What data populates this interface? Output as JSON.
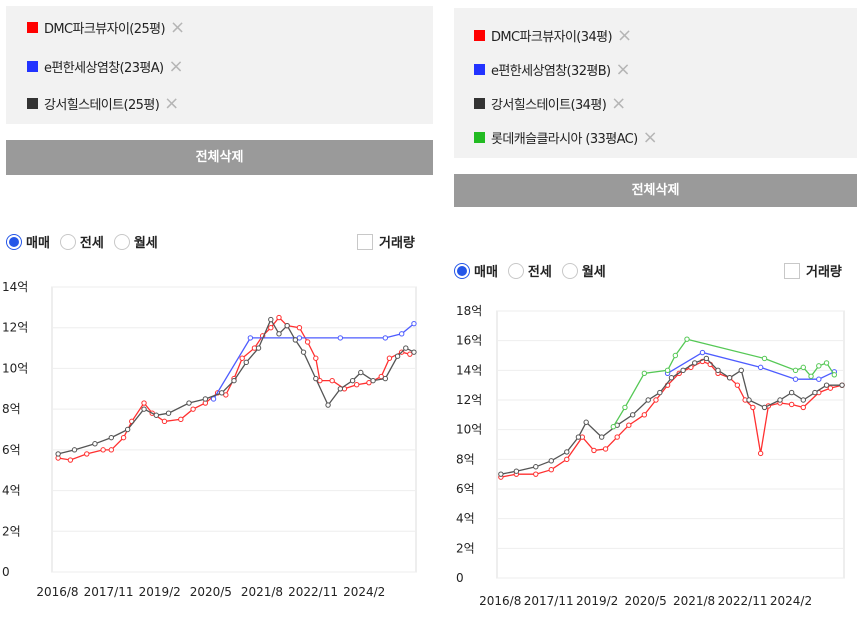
{
  "left": {
    "tags": [
      {
        "label": "DMC파크뷰자이(25평)",
        "color": "#ff0000"
      },
      {
        "label": "e편한세상염창(23평A)",
        "color": "#2233ff"
      },
      {
        "label": "강서힐스테이트(25평)",
        "color": "#333333"
      }
    ],
    "clear_label": "전체삭제",
    "radios": [
      "매매",
      "전세",
      "월세"
    ],
    "selected_radio": "매매",
    "volume_label": "거래량"
  },
  "right": {
    "tags": [
      {
        "label": "DMC파크뷰자이(34평)",
        "color": "#ff0000"
      },
      {
        "label": "e편한세상염창(32평B)",
        "color": "#2233ff"
      },
      {
        "label": "강서힐스테이트(34평)",
        "color": "#333333"
      },
      {
        "label": "롯데캐슬클라시아 (33평AC)",
        "color": "#22bb22"
      }
    ],
    "clear_label": "전체삭제",
    "radios": [
      "매매",
      "전세",
      "월세"
    ],
    "selected_radio": "매매",
    "volume_label": "거래량"
  },
  "remove_icon": "close-x",
  "chart_data": [
    {
      "type": "line",
      "x_ticks": [
        "2016/8",
        "2017/11",
        "2019/2",
        "2020/5",
        "2021/8",
        "2022/11",
        "2024/2"
      ],
      "y_ticks": [
        "0",
        "2억",
        "4억",
        "6억",
        "8억",
        "10억",
        "12억",
        "14억"
      ],
      "ylim": [
        0,
        14
      ],
      "unit": "억",
      "series": [
        {
          "name": "DMC파크뷰자이(25평)",
          "color": "#ff3030",
          "points": [
            [
              2016.6,
              5.6
            ],
            [
              2016.9,
              5.5
            ],
            [
              2017.3,
              5.8
            ],
            [
              2017.7,
              6.0
            ],
            [
              2017.9,
              6.0
            ],
            [
              2018.2,
              6.6
            ],
            [
              2018.4,
              7.4
            ],
            [
              2018.7,
              8.3
            ],
            [
              2018.9,
              7.8
            ],
            [
              2019.2,
              7.4
            ],
            [
              2019.6,
              7.5
            ],
            [
              2019.9,
              8.0
            ],
            [
              2020.2,
              8.3
            ],
            [
              2020.5,
              8.8
            ],
            [
              2020.7,
              8.7
            ],
            [
              2020.9,
              9.5
            ],
            [
              2021.1,
              10.5
            ],
            [
              2021.4,
              11.0
            ],
            [
              2021.6,
              11.6
            ],
            [
              2021.8,
              12.0
            ],
            [
              2022.0,
              12.5
            ],
            [
              2022.2,
              12.1
            ],
            [
              2022.5,
              12.0
            ],
            [
              2022.7,
              11.3
            ],
            [
              2022.9,
              10.5
            ],
            [
              2023.0,
              9.4
            ],
            [
              2023.3,
              9.4
            ],
            [
              2023.6,
              9.0
            ],
            [
              2023.9,
              9.2
            ],
            [
              2024.2,
              9.3
            ],
            [
              2024.5,
              9.6
            ],
            [
              2024.7,
              10.5
            ],
            [
              2025.0,
              10.8
            ],
            [
              2025.2,
              10.7
            ]
          ]
        },
        {
          "name": "e편한세상염창(23평A)",
          "color": "#4d5cff",
          "points": [
            [
              2020.4,
              8.5
            ],
            [
              2021.3,
              11.5
            ],
            [
              2022.5,
              11.5
            ],
            [
              2023.5,
              11.5
            ],
            [
              2024.6,
              11.5
            ],
            [
              2025.0,
              11.7
            ],
            [
              2025.3,
              12.2
            ]
          ]
        },
        {
          "name": "강서힐스테이트(25평)",
          "color": "#555555",
          "points": [
            [
              2016.6,
              5.8
            ],
            [
              2017.0,
              6.0
            ],
            [
              2017.5,
              6.3
            ],
            [
              2017.9,
              6.6
            ],
            [
              2018.3,
              7.0
            ],
            [
              2018.7,
              8.0
            ],
            [
              2019.0,
              7.7
            ],
            [
              2019.3,
              7.8
            ],
            [
              2019.8,
              8.3
            ],
            [
              2020.2,
              8.5
            ],
            [
              2020.6,
              8.8
            ],
            [
              2020.9,
              9.4
            ],
            [
              2021.2,
              10.3
            ],
            [
              2021.5,
              11.0
            ],
            [
              2021.8,
              12.4
            ],
            [
              2022.0,
              11.7
            ],
            [
              2022.2,
              12.1
            ],
            [
              2022.4,
              11.4
            ],
            [
              2022.6,
              10.8
            ],
            [
              2022.9,
              9.5
            ],
            [
              2023.2,
              8.2
            ],
            [
              2023.5,
              9.0
            ],
            [
              2023.8,
              9.4
            ],
            [
              2024.0,
              9.8
            ],
            [
              2024.3,
              9.4
            ],
            [
              2024.6,
              9.5
            ],
            [
              2024.9,
              10.6
            ],
            [
              2025.1,
              11.0
            ],
            [
              2025.3,
              10.8
            ]
          ]
        }
      ]
    },
    {
      "type": "line",
      "x_ticks": [
        "2016/8",
        "2017/11",
        "2019/2",
        "2020/5",
        "2021/8",
        "2022/11",
        "2024/2"
      ],
      "y_ticks": [
        "0",
        "2억",
        "4억",
        "6억",
        "8억",
        "10억",
        "12억",
        "14억",
        "16억",
        "18억"
      ],
      "ylim": [
        0,
        18
      ],
      "unit": "억",
      "series": [
        {
          "name": "DMC파크뷰자이(34평)",
          "color": "#ff3030",
          "points": [
            [
              2016.6,
              6.8
            ],
            [
              2017.0,
              7.0
            ],
            [
              2017.5,
              7.0
            ],
            [
              2017.9,
              7.3
            ],
            [
              2018.3,
              8.0
            ],
            [
              2018.7,
              9.5
            ],
            [
              2019.0,
              8.6
            ],
            [
              2019.3,
              8.7
            ],
            [
              2019.6,
              9.5
            ],
            [
              2019.9,
              10.3
            ],
            [
              2020.3,
              11.0
            ],
            [
              2020.6,
              12.0
            ],
            [
              2020.9,
              13.0
            ],
            [
              2021.2,
              13.8
            ],
            [
              2021.5,
              14.2
            ],
            [
              2021.8,
              14.6
            ],
            [
              2022.0,
              14.4
            ],
            [
              2022.2,
              13.8
            ],
            [
              2022.5,
              13.5
            ],
            [
              2022.7,
              13.0
            ],
            [
              2022.9,
              12.0
            ],
            [
              2023.1,
              11.5
            ],
            [
              2023.3,
              8.4
            ],
            [
              2023.5,
              11.6
            ],
            [
              2023.8,
              11.8
            ],
            [
              2024.1,
              11.7
            ],
            [
              2024.4,
              11.5
            ],
            [
              2024.8,
              12.5
            ],
            [
              2025.1,
              12.8
            ],
            [
              2025.4,
              13.0
            ]
          ]
        },
        {
          "name": "e편한세상염창(32평B)",
          "color": "#4d5cff",
          "points": [
            [
              2020.9,
              13.8
            ],
            [
              2021.8,
              15.2
            ],
            [
              2023.3,
              14.2
            ],
            [
              2024.2,
              13.4
            ],
            [
              2024.8,
              13.4
            ],
            [
              2025.2,
              13.9
            ]
          ]
        },
        {
          "name": "강서힐스테이트(34평)",
          "color": "#555555",
          "points": [
            [
              2016.6,
              7.0
            ],
            [
              2017.0,
              7.2
            ],
            [
              2017.5,
              7.5
            ],
            [
              2017.9,
              7.9
            ],
            [
              2018.3,
              8.5
            ],
            [
              2018.6,
              9.5
            ],
            [
              2018.8,
              10.5
            ],
            [
              2019.2,
              9.5
            ],
            [
              2019.6,
              10.3
            ],
            [
              2020.0,
              11.0
            ],
            [
              2020.4,
              12.0
            ],
            [
              2020.7,
              12.5
            ],
            [
              2021.0,
              13.5
            ],
            [
              2021.3,
              14.0
            ],
            [
              2021.6,
              14.5
            ],
            [
              2021.9,
              14.8
            ],
            [
              2022.2,
              14.0
            ],
            [
              2022.5,
              13.5
            ],
            [
              2022.8,
              14.0
            ],
            [
              2023.0,
              12.0
            ],
            [
              2023.4,
              11.5
            ],
            [
              2023.8,
              12.0
            ],
            [
              2024.1,
              12.5
            ],
            [
              2024.4,
              12.0
            ],
            [
              2024.7,
              12.5
            ],
            [
              2025.0,
              13.0
            ],
            [
              2025.4,
              13.0
            ]
          ]
        },
        {
          "name": "롯데캐슬클라시아 (33평AC)",
          "color": "#55c855",
          "points": [
            [
              2019.5,
              10.2
            ],
            [
              2019.8,
              11.5
            ],
            [
              2020.3,
              13.8
            ],
            [
              2020.9,
              14.0
            ],
            [
              2021.1,
              15.0
            ],
            [
              2021.4,
              16.1
            ],
            [
              2023.4,
              14.8
            ],
            [
              2024.2,
              14.0
            ],
            [
              2024.4,
              14.2
            ],
            [
              2024.6,
              13.6
            ],
            [
              2024.8,
              14.3
            ],
            [
              2025.0,
              14.5
            ],
            [
              2025.2,
              13.7
            ]
          ]
        }
      ]
    }
  ]
}
